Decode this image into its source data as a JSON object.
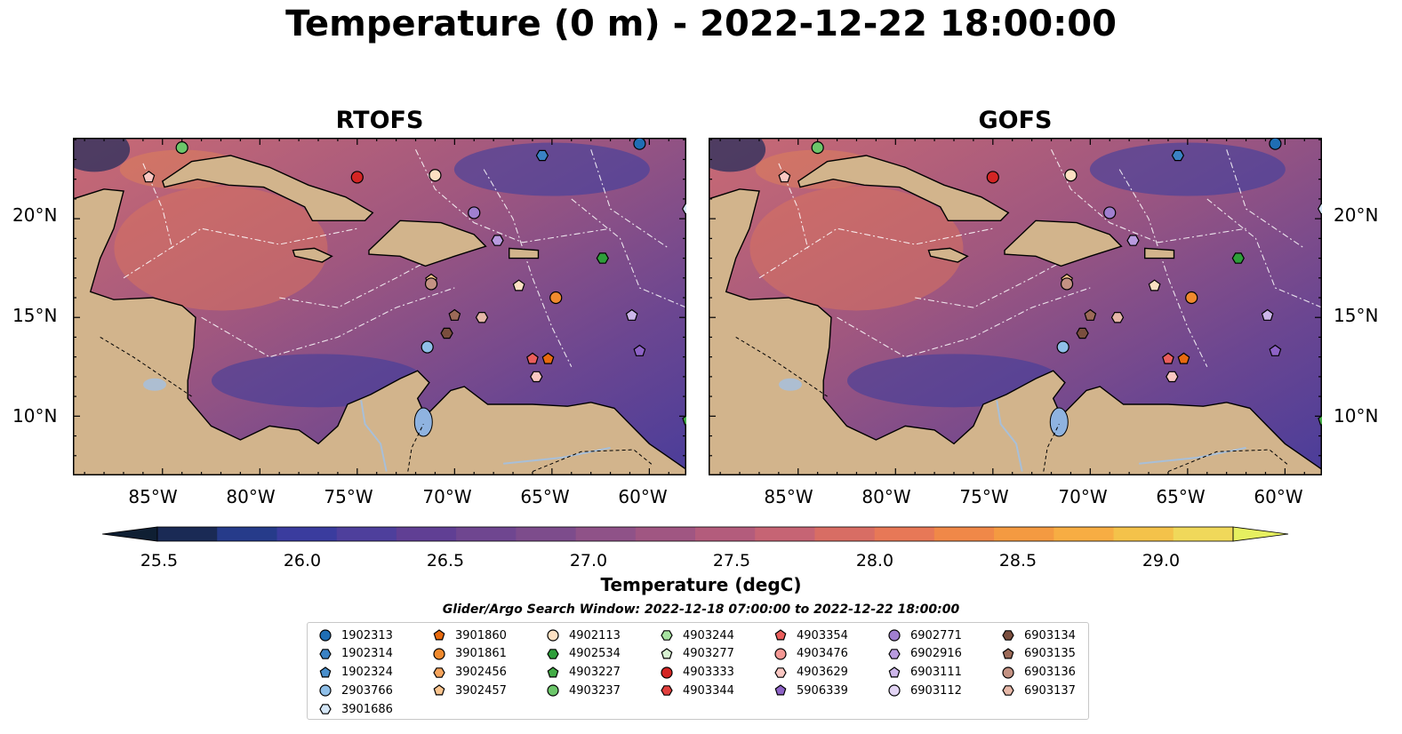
{
  "title": "Temperature (0 m) - 2022-12-22 18:00:00",
  "panels": [
    {
      "title": "RTOFS"
    },
    {
      "title": "GOFS"
    }
  ],
  "axes": {
    "lat_ticks": [
      "20°N",
      "15°N",
      "10°N"
    ],
    "lon_ticks": [
      "85°W",
      "80°W",
      "75°W",
      "70°W",
      "65°W",
      "60°W"
    ]
  },
  "colorbar": {
    "label": "Temperature (degC)",
    "ticks": [
      "25.5",
      "26.0",
      "26.5",
      "27.0",
      "27.5",
      "28.0",
      "28.5",
      "29.0"
    ],
    "range": [
      25.25,
      29.25
    ],
    "colors": [
      "#0f1f33",
      "#1a2a55",
      "#263b8a",
      "#3a3c9e",
      "#4e3f9c",
      "#603f94",
      "#6f4690",
      "#7d4c8c",
      "#8f5288",
      "#a05682",
      "#b35c7c",
      "#c66474",
      "#d86d64",
      "#e77857",
      "#f08848",
      "#f49a41",
      "#f7ad43",
      "#f4c24a",
      "#f0d85a",
      "#e6f060"
    ]
  },
  "legend": {
    "title": "Glider/Argo Search Window: 2022-12-18 07:00:00 to 2022-12-22 18:00:00",
    "columns": [
      [
        {
          "id": "1902313",
          "marker": "circle",
          "color": "#1f6eb4"
        },
        {
          "id": "1902314",
          "marker": "hexagon",
          "color": "#3a82c4"
        },
        {
          "id": "1902324",
          "marker": "pentagon",
          "color": "#4a8fcc"
        },
        {
          "id": "2903766",
          "marker": "circle",
          "color": "#8fbfe8"
        },
        {
          "id": "3901686",
          "marker": "hexagon",
          "color": "#d4e6f6"
        }
      ],
      [
        {
          "id": "3901860",
          "marker": "pentagon",
          "color": "#e86a0e"
        },
        {
          "id": "3901861",
          "marker": "circle",
          "color": "#f08a2e"
        },
        {
          "id": "3902456",
          "marker": "hexagon",
          "color": "#f6a45c"
        },
        {
          "id": "3902457",
          "marker": "pentagon",
          "color": "#fac48e"
        }
      ],
      [
        {
          "id": "4902113",
          "marker": "circle",
          "color": "#fde0c2"
        },
        {
          "id": "4902534",
          "marker": "hexagon",
          "color": "#2e9e3a"
        },
        {
          "id": "4903227",
          "marker": "pentagon",
          "color": "#43ad46"
        },
        {
          "id": "4903237",
          "marker": "circle",
          "color": "#6cc66a"
        }
      ],
      [
        {
          "id": "4903244",
          "marker": "hexagon",
          "color": "#a6e2a0"
        },
        {
          "id": "4903277",
          "marker": "pentagon",
          "color": "#d7f2d1"
        },
        {
          "id": "4903333",
          "marker": "circle",
          "color": "#d42524"
        },
        {
          "id": "4903344",
          "marker": "hexagon",
          "color": "#e2403e"
        }
      ],
      [
        {
          "id": "4903354",
          "marker": "pentagon",
          "color": "#ea5e5c"
        },
        {
          "id": "4903476",
          "marker": "circle",
          "color": "#f59894"
        },
        {
          "id": "4903629",
          "marker": "hexagon",
          "color": "#fac7c2"
        },
        {
          "id": "5906339",
          "marker": "pentagon",
          "color": "#8e63c6"
        }
      ],
      [
        {
          "id": "6902771",
          "marker": "circle",
          "color": "#a07fd0"
        },
        {
          "id": "6902916",
          "marker": "hexagon",
          "color": "#b99be0"
        },
        {
          "id": "6903111",
          "marker": "pentagon",
          "color": "#cdb6ea"
        },
        {
          "id": "6903112",
          "marker": "circle",
          "color": "#e2d4f4"
        }
      ],
      [
        {
          "id": "6903134",
          "marker": "hexagon",
          "color": "#7a4e3e"
        },
        {
          "id": "6903135",
          "marker": "pentagon",
          "color": "#9c6a58"
        },
        {
          "id": "6903136",
          "marker": "circle",
          "color": "#c49283"
        },
        {
          "id": "6903137",
          "marker": "hexagon",
          "color": "#e6b8a8"
        }
      ]
    ]
  },
  "map_markers": [
    {
      "lon": -84.0,
      "lat": 23.6,
      "marker": "circle",
      "color": "#6cc66a"
    },
    {
      "lon": -85.7,
      "lat": 22.1,
      "marker": "pentagon",
      "color": "#fac7c2"
    },
    {
      "lon": -75.0,
      "lat": 22.1,
      "marker": "circle",
      "color": "#d42524"
    },
    {
      "lon": -71.0,
      "lat": 22.2,
      "marker": "circle",
      "color": "#fde0c2"
    },
    {
      "lon": -65.5,
      "lat": 23.2,
      "marker": "hexagon",
      "color": "#3a82c4"
    },
    {
      "lon": -60.5,
      "lat": 23.8,
      "marker": "circle",
      "color": "#1f6eb4"
    },
    {
      "lon": -58.0,
      "lat": 20.5,
      "marker": "hexagon",
      "color": "#d4e6f6"
    },
    {
      "lon": -69.0,
      "lat": 20.3,
      "marker": "circle",
      "color": "#a07fd0"
    },
    {
      "lon": -67.8,
      "lat": 18.9,
      "marker": "hexagon",
      "color": "#b99be0"
    },
    {
      "lon": -62.4,
      "lat": 18.0,
      "marker": "hexagon",
      "color": "#2e9e3a"
    },
    {
      "lon": -71.2,
      "lat": 16.9,
      "marker": "pentagon",
      "color": "#fac48e"
    },
    {
      "lon": -71.2,
      "lat": 16.7,
      "marker": "circle",
      "color": "#c49283"
    },
    {
      "lon": -66.7,
      "lat": 16.6,
      "marker": "pentagon",
      "color": "#fde0c2"
    },
    {
      "lon": -64.8,
      "lat": 16.0,
      "marker": "circle",
      "color": "#f08a2e"
    },
    {
      "lon": -60.9,
      "lat": 15.1,
      "marker": "pentagon",
      "color": "#cdb6ea"
    },
    {
      "lon": -70.0,
      "lat": 15.1,
      "marker": "pentagon",
      "color": "#9c6a58"
    },
    {
      "lon": -68.6,
      "lat": 15.0,
      "marker": "hexagon",
      "color": "#e6b8a8"
    },
    {
      "lon": -70.4,
      "lat": 14.2,
      "marker": "hexagon",
      "color": "#7a4e3e"
    },
    {
      "lon": -71.4,
      "lat": 13.5,
      "marker": "circle",
      "color": "#8fbfe8"
    },
    {
      "lon": -60.5,
      "lat": 13.3,
      "marker": "pentagon",
      "color": "#8e63c6"
    },
    {
      "lon": -66.0,
      "lat": 12.9,
      "marker": "pentagon",
      "color": "#ea5e5c"
    },
    {
      "lon": -65.2,
      "lat": 12.9,
      "marker": "pentagon",
      "color": "#e86a0e"
    },
    {
      "lon": -65.8,
      "lat": 12.0,
      "marker": "hexagon",
      "color": "#fac7c2"
    },
    {
      "lon": -58.0,
      "lat": 9.8,
      "marker": "pentagon",
      "color": "#43ad46"
    }
  ]
}
